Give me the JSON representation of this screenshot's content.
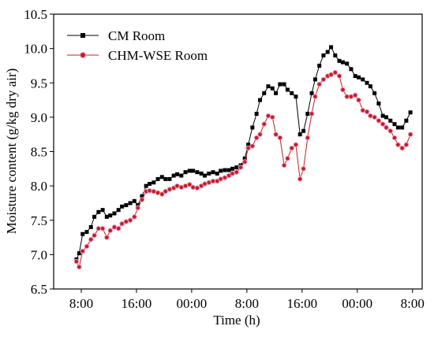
{
  "chart_data": {
    "type": "line",
    "xlabel": "Time (h)",
    "ylabel": "Moisture content (g/kg dry air)",
    "xlim": [
      -4,
      49.4
    ],
    "ylim": [
      6.5,
      10.5
    ],
    "xticks": [
      {
        "value": 0,
        "label": "8:00"
      },
      {
        "value": 8,
        "label": "16:00"
      },
      {
        "value": 16,
        "label": "00:00"
      },
      {
        "value": 24,
        "label": "8:00"
      },
      {
        "value": 32,
        "label": "16:00"
      },
      {
        "value": 40,
        "label": "00:00"
      },
      {
        "value": 48,
        "label": "8:00"
      }
    ],
    "yticks": [
      6.5,
      {
        "value": 7,
        "label": "7.0"
      },
      7.5,
      {
        "value": 8,
        "label": "8.0"
      },
      8.5,
      {
        "value": 9,
        "label": "9.0"
      },
      9.5,
      {
        "value": 10,
        "label": "10.0"
      },
      10.5
    ],
    "legend": "upper left",
    "x": [
      -0.7,
      -0.3,
      0.2,
      0.8,
      1.4,
      1.9,
      2.5,
      3.1,
      3.7,
      4.2,
      4.8,
      5.4,
      5.9,
      6.5,
      7.1,
      7.7,
      8.2,
      8.8,
      9.4,
      9.9,
      10.5,
      11.1,
      11.7,
      12.2,
      12.8,
      13.4,
      13.9,
      14.5,
      15.1,
      15.7,
      16.2,
      16.8,
      17.4,
      17.9,
      18.5,
      19.1,
      19.7,
      20.2,
      20.8,
      21.4,
      21.9,
      22.5,
      23.1,
      23.7,
      24.2,
      24.8,
      25.4,
      25.9,
      26.5,
      27.1,
      27.7,
      28.2,
      28.8,
      29.4,
      29.9,
      30.5,
      31.1,
      31.7,
      32.2,
      32.8,
      33.4,
      33.9,
      34.5,
      35.1,
      35.7,
      36.2,
      36.8,
      37.4,
      37.9,
      38.5,
      39.1,
      39.7,
      40.2,
      40.8,
      41.4,
      41.9,
      42.5,
      43.1,
      43.7,
      44.2,
      44.8,
      45.4,
      45.9,
      46.5,
      47.1,
      47.7
    ],
    "series": [
      {
        "name": "CM Room",
        "color": "#000000",
        "marker": "square",
        "values": [
          6.93,
          7.02,
          7.3,
          7.33,
          7.4,
          7.55,
          7.62,
          7.65,
          7.55,
          7.57,
          7.6,
          7.65,
          7.7,
          7.72,
          7.75,
          7.78,
          7.72,
          7.85,
          8.0,
          8.03,
          8.05,
          8.1,
          8.13,
          8.1,
          8.1,
          8.15,
          8.17,
          8.15,
          8.2,
          8.22,
          8.22,
          8.2,
          8.18,
          8.15,
          8.18,
          8.2,
          8.18,
          8.22,
          8.23,
          8.23,
          8.25,
          8.27,
          8.3,
          8.4,
          8.6,
          8.85,
          9.05,
          9.25,
          9.35,
          9.45,
          9.42,
          9.35,
          9.48,
          9.48,
          9.4,
          9.35,
          9.3,
          8.75,
          8.8,
          9.05,
          9.35,
          9.55,
          9.75,
          9.9,
          9.95,
          10.02,
          9.9,
          9.82,
          9.8,
          9.78,
          9.7,
          9.6,
          9.58,
          9.55,
          9.5,
          9.45,
          9.35,
          9.2,
          9.02,
          9.0,
          8.95,
          8.9,
          8.85,
          8.85,
          8.95,
          9.07
        ]
      },
      {
        "name": "CHM-WSE  Room",
        "color": "#c0201c",
        "marker": "circle",
        "values": [
          6.9,
          6.82,
          7.05,
          7.12,
          7.22,
          7.28,
          7.38,
          7.38,
          7.25,
          7.35,
          7.4,
          7.38,
          7.45,
          7.48,
          7.5,
          7.55,
          7.68,
          7.8,
          7.92,
          7.93,
          7.92,
          7.9,
          7.88,
          7.92,
          7.95,
          7.97,
          8.0,
          7.98,
          8.0,
          8.02,
          7.98,
          7.97,
          8.0,
          8.03,
          8.05,
          8.07,
          8.07,
          8.1,
          8.12,
          8.15,
          8.18,
          8.2,
          8.27,
          8.35,
          8.55,
          8.58,
          8.7,
          8.75,
          8.9,
          9.02,
          9.0,
          8.75,
          8.7,
          8.3,
          8.4,
          8.55,
          8.6,
          8.1,
          8.25,
          8.7,
          9.05,
          9.3,
          9.48,
          9.55,
          9.6,
          9.62,
          9.65,
          9.6,
          9.4,
          9.3,
          9.3,
          9.32,
          9.25,
          9.1,
          9.08,
          9.02,
          9.0,
          8.95,
          8.9,
          8.85,
          8.8,
          8.7,
          8.6,
          8.55,
          8.6,
          8.75
        ]
      }
    ]
  }
}
